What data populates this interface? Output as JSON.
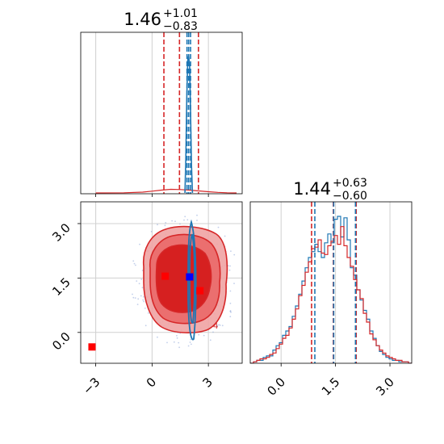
{
  "chart_data": [
    {
      "panel": "top-left",
      "type": "histogram",
      "title": {
        "median": "1.46",
        "plus": "+1.01",
        "minus": "−0.83"
      },
      "xlim": [
        -3.8,
        4.8
      ],
      "grid": true,
      "series": [
        {
          "color": "#d62728",
          "x": [
            -3.0,
            -1.5,
            -0.5,
            0.0,
            0.5,
            1.0,
            1.5,
            2.0,
            2.5,
            3.0,
            3.5,
            4.0,
            4.5
          ],
          "values": [
            0,
            0.01,
            0.04,
            0.09,
            0.14,
            0.18,
            0.17,
            0.14,
            0.1,
            0.06,
            0.03,
            0.01,
            0
          ]
        },
        {
          "color": "#1f77b4",
          "x": [
            1.75,
            1.8,
            1.85,
            1.9,
            1.95,
            2.0,
            2.05,
            2.1,
            2.15
          ],
          "values": [
            0,
            0.25,
            0.7,
            0.97,
            1.0,
            0.92,
            0.6,
            0.2,
            0
          ]
        }
      ],
      "quantiles": [
        {
          "color": "#d62728",
          "values": [
            0.63,
            1.46,
            2.47
          ]
        },
        {
          "color": "#1f77b4",
          "values": [
            1.86,
            1.95,
            2.05
          ]
        }
      ]
    },
    {
      "panel": "bottom-left",
      "type": "contour",
      "xlim": [
        -3.8,
        4.8
      ],
      "ylim": [
        -0.85,
        3.6
      ],
      "xticks": [
        "−3",
        "0",
        "3"
      ],
      "yticks": [
        "0.0",
        "1.5",
        "3.0"
      ],
      "xtick_values": [
        -3,
        0,
        3
      ],
      "ytick_values": [
        0,
        1.5,
        3
      ],
      "grid": true,
      "markers": [
        {
          "color": "#ff0000",
          "x": -3.2,
          "y": -0.4
        },
        {
          "color": "#ff0000",
          "x": 0.7,
          "y": 1.55
        },
        {
          "color": "#ff0000",
          "x": 2.55,
          "y": 1.15
        },
        {
          "color": "#0000ff",
          "x": 2.0,
          "y": 1.53
        }
      ],
      "contour_label": "4"
    },
    {
      "panel": "bottom-right",
      "type": "histogram",
      "title": {
        "median": "1.44",
        "plus": "+0.63",
        "minus": "−0.60"
      },
      "xlim": [
        -0.85,
        3.6
      ],
      "xticks": [
        "0.0",
        "1.5",
        "3.0"
      ],
      "xtick_values": [
        0,
        1.5,
        3
      ],
      "grid": true,
      "series": [
        {
          "color": "#1f77b4",
          "values": [
            0.0,
            0.01,
            0.02,
            0.02,
            0.04,
            0.05,
            0.05,
            0.09,
            0.12,
            0.14,
            0.19,
            0.22,
            0.25,
            0.32,
            0.39,
            0.47,
            0.56,
            0.65,
            0.72,
            0.76,
            0.81,
            0.76,
            0.72,
            0.82,
            0.88,
            0.82,
            0.98,
            1.0,
            0.86,
            0.99,
            0.84,
            0.65,
            0.6,
            0.5,
            0.43,
            0.36,
            0.3,
            0.22,
            0.17,
            0.12,
            0.08,
            0.06,
            0.04,
            0.03,
            0.02,
            0.02,
            0.01,
            0.01,
            0.01,
            0.0
          ]
        },
        {
          "color": "#d62728",
          "values": [
            0.0,
            0.01,
            0.02,
            0.03,
            0.03,
            0.04,
            0.06,
            0.07,
            0.1,
            0.13,
            0.17,
            0.19,
            0.24,
            0.3,
            0.37,
            0.46,
            0.53,
            0.62,
            0.69,
            0.78,
            0.79,
            0.84,
            0.75,
            0.74,
            0.8,
            0.83,
            0.87,
            0.81,
            0.93,
            0.8,
            0.72,
            0.66,
            0.57,
            0.5,
            0.44,
            0.34,
            0.28,
            0.2,
            0.16,
            0.12,
            0.09,
            0.07,
            0.05,
            0.04,
            0.03,
            0.02,
            0.02,
            0.01,
            0.01,
            0.0
          ]
        }
      ],
      "quantiles": [
        {
          "color": "#d62728",
          "values": [
            0.84,
            1.44,
            2.07
          ]
        },
        {
          "color": "#1f77b4",
          "values": [
            0.93,
            1.45,
            2.05
          ]
        }
      ]
    }
  ]
}
